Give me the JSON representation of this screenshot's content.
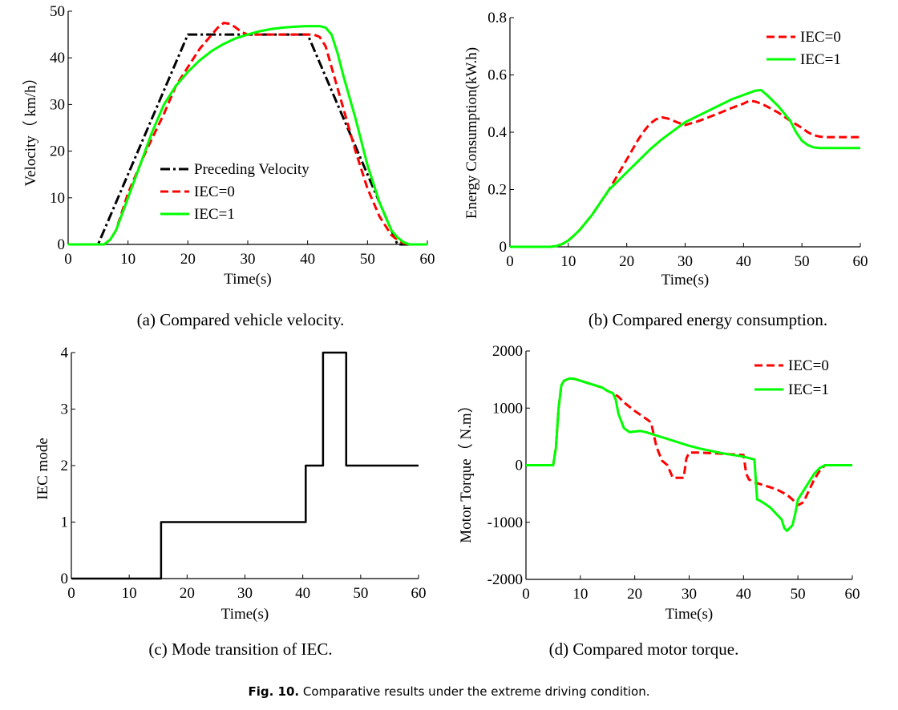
{
  "figure_caption": {
    "label": "Fig. 10.",
    "text": " Comparative results under the extreme driving condition."
  },
  "chart_data": [
    {
      "type": "line",
      "caption": "(a) Compared vehicle velocity.",
      "xlabel": "Time(s)",
      "ylabel": "Velocity（ km/h）",
      "xlim": [
        0,
        60
      ],
      "ylim": [
        0,
        50
      ],
      "xticks": [
        "0",
        "10",
        "20",
        "30",
        "40",
        "50",
        "60"
      ],
      "yticks": [
        "0",
        "10",
        "20",
        "30",
        "40",
        "50"
      ],
      "legend_position": "center",
      "series": [
        {
          "name": "Preceding Velocity",
          "color": "#000000",
          "style": "dashdot",
          "x": [
            0,
            5,
            20,
            40,
            55,
            60
          ],
          "y": [
            0,
            0,
            45,
            45,
            0,
            0
          ]
        },
        {
          "name": "IEC=0",
          "color": "#ff0000",
          "style": "dashed",
          "x": [
            0,
            5,
            6,
            7,
            8,
            10,
            13,
            16,
            18,
            20,
            22,
            24,
            25,
            26,
            27,
            28,
            29,
            30,
            32,
            34,
            36,
            38,
            40,
            41,
            42,
            43,
            44,
            46,
            48,
            50,
            52,
            54,
            55,
            56,
            57,
            58,
            60
          ],
          "y": [
            0,
            0,
            0,
            1,
            3,
            11,
            20,
            28,
            34,
            38,
            42,
            45,
            46.5,
            47.5,
            47.3,
            46.5,
            45.5,
            45,
            45,
            45,
            45,
            45,
            45,
            45,
            44.5,
            42.5,
            38,
            29,
            20,
            12,
            6,
            2,
            1,
            0.3,
            0,
            0,
            0
          ]
        },
        {
          "name": "IEC=1",
          "color": "#00ff00",
          "style": "solid",
          "x": [
            0,
            5,
            6,
            7,
            8,
            10,
            12,
            14,
            16,
            18,
            20,
            22,
            24,
            26,
            28,
            30,
            32,
            34,
            36,
            38,
            40,
            42,
            43,
            44,
            45,
            46,
            48,
            50,
            52,
            54,
            55,
            56,
            57,
            58,
            60
          ],
          "y": [
            0,
            0,
            0,
            1,
            3,
            10,
            17,
            24,
            30,
            34,
            37,
            39.5,
            41.5,
            43,
            44.2,
            45,
            45.7,
            46.2,
            46.5,
            46.7,
            46.8,
            46.8,
            46.5,
            45,
            41,
            36,
            27,
            17,
            9,
            3,
            1.5,
            0.5,
            0,
            0,
            0
          ]
        }
      ]
    },
    {
      "type": "line",
      "caption": "(b) Compared energy consumption.",
      "xlabel": "Time(s)",
      "ylabel": "Energy Consumption(kW.h)",
      "xlim": [
        0,
        60
      ],
      "ylim": [
        0,
        0.8
      ],
      "xticks": [
        "0",
        "10",
        "20",
        "30",
        "40",
        "50",
        "60"
      ],
      "yticks": [
        "0",
        "0.2",
        "0.4",
        "0.6",
        "0.8"
      ],
      "legend_position": "top-right",
      "series": [
        {
          "name": "IEC=0",
          "color": "#ff0000",
          "style": "dashed",
          "x": [
            0,
            7,
            8,
            9,
            10,
            11,
            12,
            13,
            14,
            15,
            16,
            17,
            18,
            19,
            20,
            21,
            22,
            23,
            24,
            25,
            26,
            27,
            28,
            29,
            30,
            32,
            34,
            36,
            38,
            40,
            41,
            42,
            43,
            44,
            46,
            48,
            50,
            51,
            52,
            53,
            54,
            56,
            58,
            60
          ],
          "y": [
            0,
            0,
            0.003,
            0.01,
            0.022,
            0.04,
            0.06,
            0.085,
            0.11,
            0.14,
            0.17,
            0.2,
            0.235,
            0.27,
            0.305,
            0.34,
            0.375,
            0.405,
            0.43,
            0.445,
            0.452,
            0.448,
            0.44,
            0.432,
            0.425,
            0.437,
            0.452,
            0.468,
            0.485,
            0.5,
            0.51,
            0.507,
            0.5,
            0.49,
            0.468,
            0.44,
            0.415,
            0.4,
            0.39,
            0.385,
            0.383,
            0.383,
            0.383,
            0.383
          ]
        },
        {
          "name": "IEC=1",
          "color": "#00ff00",
          "style": "solid",
          "x": [
            0,
            7,
            8,
            9,
            10,
            11,
            12,
            13,
            14,
            15,
            16,
            17,
            18,
            20,
            22,
            24,
            26,
            28,
            30,
            32,
            34,
            36,
            38,
            40,
            42,
            43,
            44,
            46,
            48,
            49,
            50,
            51,
            52,
            53,
            54,
            56,
            58,
            60
          ],
          "y": [
            0,
            0,
            0.003,
            0.01,
            0.022,
            0.04,
            0.06,
            0.085,
            0.11,
            0.14,
            0.17,
            0.2,
            0.22,
            0.26,
            0.3,
            0.34,
            0.375,
            0.405,
            0.435,
            0.455,
            0.475,
            0.495,
            0.515,
            0.53,
            0.545,
            0.547,
            0.53,
            0.49,
            0.44,
            0.4,
            0.37,
            0.355,
            0.347,
            0.345,
            0.345,
            0.345,
            0.345,
            0.345
          ]
        }
      ]
    },
    {
      "type": "line",
      "caption": "(c) Mode transition of IEC.",
      "xlabel": "Time(s)",
      "ylabel": "IEC mode",
      "xlim": [
        0,
        60
      ],
      "ylim": [
        0,
        4
      ],
      "xticks": [
        "0",
        "10",
        "20",
        "30",
        "40",
        "50",
        "60"
      ],
      "yticks": [
        "0",
        "1",
        "2",
        "3",
        "4"
      ],
      "legend_position": "none",
      "series": [
        {
          "name": "IEC mode",
          "color": "#000000",
          "style": "solid",
          "x": [
            0,
            15.5,
            15.5,
            40.5,
            40.5,
            43.5,
            43.5,
            47.5,
            47.5,
            60
          ],
          "y": [
            0,
            0,
            1,
            1,
            2,
            2,
            4,
            4,
            2,
            2
          ]
        }
      ]
    },
    {
      "type": "line",
      "caption": "(d) Compared motor torque.",
      "xlabel": "Time(s)",
      "ylabel": "Motor Torque（ N.m）",
      "xlim": [
        0,
        60
      ],
      "ylim": [
        -2000,
        2000
      ],
      "xticks": [
        "0",
        "10",
        "20",
        "30",
        "40",
        "50",
        "60"
      ],
      "yticks": [
        "-2000",
        "-1000",
        "0",
        "1000",
        "2000"
      ],
      "legend_position": "top-right",
      "series": [
        {
          "name": "IEC=0",
          "color": "#ff0000",
          "style": "dashed",
          "x": [
            0,
            5,
            5.5,
            6,
            6.5,
            7,
            8,
            9,
            10,
            12,
            14,
            15,
            16,
            17,
            18,
            20,
            22,
            23,
            24,
            25,
            26,
            27,
            28,
            29,
            29.5,
            30,
            32,
            34,
            36,
            38,
            40,
            40.5,
            41,
            42,
            44,
            46,
            48,
            49,
            50,
            51,
            52,
            53,
            54,
            55,
            56,
            58,
            60
          ],
          "y": [
            0,
            0,
            300,
            1000,
            1400,
            1480,
            1520,
            1510,
            1480,
            1420,
            1360,
            1300,
            1260,
            1200,
            1100,
            950,
            820,
            750,
            320,
            80,
            0,
            -220,
            -220,
            -220,
            120,
            220,
            220,
            210,
            200,
            190,
            180,
            -150,
            -250,
            -300,
            -360,
            -420,
            -520,
            -600,
            -700,
            -650,
            -450,
            -250,
            -100,
            0,
            0,
            0,
            0
          ]
        },
        {
          "name": "IEC=1",
          "color": "#00ff00",
          "style": "solid",
          "x": [
            0,
            5,
            5.5,
            6,
            6.5,
            7,
            8,
            9,
            10,
            12,
            14,
            15,
            16,
            16.5,
            17,
            18,
            19,
            20,
            21,
            22,
            24,
            26,
            28,
            30,
            32,
            34,
            36,
            38,
            40,
            42,
            42.5,
            43,
            44,
            45,
            46,
            47,
            47.5,
            48,
            49,
            49.5,
            50,
            51,
            52,
            53,
            54,
            55,
            56,
            58,
            60
          ],
          "y": [
            0,
            0,
            300,
            1000,
            1400,
            1480,
            1520,
            1510,
            1480,
            1420,
            1360,
            1300,
            1260,
            1150,
            900,
            650,
            580,
            590,
            600,
            580,
            520,
            460,
            400,
            340,
            290,
            250,
            210,
            180,
            150,
            100,
            -600,
            -620,
            -680,
            -750,
            -850,
            -950,
            -1100,
            -1150,
            -1050,
            -850,
            -600,
            -450,
            -300,
            -150,
            -50,
            0,
            0,
            0,
            0
          ]
        }
      ]
    }
  ]
}
